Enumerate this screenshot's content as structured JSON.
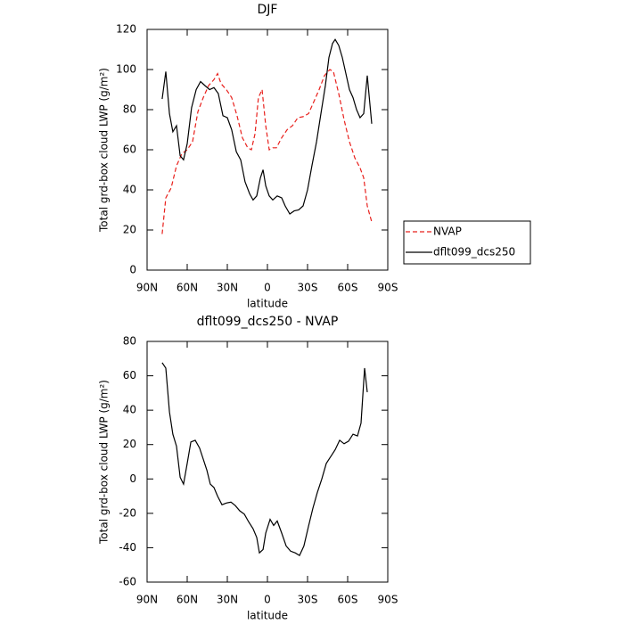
{
  "chart_data": [
    {
      "type": "line",
      "title": "DJF",
      "xlabel": "latitude",
      "ylabel": "Total grd-box cloud LWP (g/m²)",
      "xlim": [
        90,
        -90
      ],
      "xticks": [
        {
          "value": 90,
          "label": "90N"
        },
        {
          "value": 60,
          "label": "60N"
        },
        {
          "value": 30,
          "label": "30N"
        },
        0,
        {
          "value": -30,
          "label": "30S"
        },
        {
          "value": -60,
          "label": "60S"
        },
        {
          "value": -90,
          "label": "90S"
        }
      ],
      "ylim": [
        0,
        120
      ],
      "yticks": [
        0,
        20,
        40,
        60,
        80,
        100,
        120
      ],
      "legend": "right",
      "series": [
        {
          "name": "NVAP",
          "color": "#e8201c",
          "style": "dashed",
          "x": [
            78.7,
            76,
            72,
            68,
            64,
            60,
            56,
            52,
            48,
            44,
            40,
            37.3,
            34.7,
            30.7,
            26.7,
            22.7,
            18.7,
            14.7,
            12,
            9.3,
            6.7,
            4,
            1.3,
            -1.3,
            -4,
            -6.7,
            -10.7,
            -14.7,
            -18.7,
            -22.7,
            -26.7,
            -30.7,
            -34.7,
            -38.7,
            -42.7,
            -46.7,
            -49.3,
            -53.3,
            -57.3,
            -61.3,
            -65.3,
            -69.3,
            -72,
            -74.7,
            -78
          ],
          "values": [
            18,
            36,
            41,
            52,
            58,
            60,
            64,
            79,
            86,
            92,
            95,
            98,
            93,
            90,
            86,
            77,
            66,
            61,
            60,
            68,
            86,
            90,
            72,
            60,
            61,
            61,
            66,
            70,
            72,
            76,
            76.5,
            78,
            84,
            90,
            97,
            100,
            99,
            88,
            75,
            64,
            56,
            51,
            46,
            32,
            24
          ]
        },
        {
          "name": "dflt099_dcs250",
          "color": "#000000",
          "style": "solid",
          "x": [
            78.7,
            76,
            73.3,
            70.7,
            68,
            65.3,
            62.7,
            60,
            56.7,
            53.3,
            50,
            46.7,
            43.3,
            40,
            36.7,
            33.3,
            30,
            26.7,
            23.3,
            20,
            16.7,
            13.3,
            10.7,
            8,
            5.3,
            3.3,
            1.3,
            -1.3,
            -4,
            -7.3,
            -10.7,
            -13.3,
            -16.7,
            -20,
            -23.3,
            -26.7,
            -30,
            -33.3,
            -36.7,
            -40,
            -43.3,
            -46,
            -48.7,
            -50.7,
            -53.3,
            -56,
            -58.7,
            -61.3,
            -64,
            -66.7,
            -69.3,
            -72,
            -74.7,
            -78
          ],
          "values": [
            85.3,
            99,
            78,
            69,
            72,
            57,
            55,
            63,
            81,
            90,
            94,
            92,
            90,
            91,
            88,
            77,
            76,
            70,
            59,
            55,
            44,
            38,
            35,
            37,
            46,
            50,
            42,
            37,
            35,
            37,
            36,
            32,
            28,
            29.5,
            30,
            32,
            40,
            52,
            64,
            78,
            92,
            106,
            113,
            115,
            112,
            106,
            98,
            90,
            86,
            80,
            76,
            78,
            97,
            73
          ]
        }
      ]
    },
    {
      "type": "line",
      "title": "dflt099_dcs250 - NVAP",
      "xlabel": "latitude",
      "ylabel": "Total grd-box cloud LWP (g/m²)",
      "xlim": [
        90,
        -90
      ],
      "xticks": [
        {
          "value": 90,
          "label": "90N"
        },
        {
          "value": 60,
          "label": "60N"
        },
        {
          "value": 30,
          "label": "30N"
        },
        0,
        {
          "value": -30,
          "label": "30S"
        },
        {
          "value": -60,
          "label": "60S"
        },
        {
          "value": -90,
          "label": "90S"
        }
      ],
      "ylim": [
        -60,
        80
      ],
      "yticks": [
        -60,
        -40,
        -20,
        0,
        20,
        40,
        60,
        80
      ],
      "series": [
        {
          "color": "#000000",
          "style": "solid",
          "x": [
            78.7,
            76,
            73.3,
            70.7,
            68,
            65.3,
            62.7,
            60,
            57.3,
            54,
            50.7,
            48,
            45.3,
            42.7,
            40,
            37.3,
            34,
            30.7,
            27.3,
            24,
            20.7,
            17.3,
            14,
            10.7,
            8,
            6,
            3.3,
            1.3,
            -2,
            -4.7,
            -7.3,
            -10.7,
            -14,
            -17.3,
            -20.7,
            -24,
            -27.3,
            -30.7,
            -34,
            -37.3,
            -40.7,
            -44,
            -47.3,
            -50.7,
            -54,
            -57.3,
            -60.7,
            -64,
            -67.3,
            -70,
            -72.7,
            -74.7
          ],
          "values": [
            67.6,
            64.5,
            39,
            26,
            19,
            1,
            -3,
            9,
            21.5,
            22.5,
            18,
            11.5,
            5,
            -3,
            -5,
            -10,
            -15,
            -14,
            -13.5,
            -15.5,
            -18.5,
            -20.5,
            -25,
            -29,
            -34,
            -43,
            -41,
            -31.5,
            -23.5,
            -27,
            -24.5,
            -31.5,
            -39,
            -42,
            -43,
            -44.5,
            -39,
            -27.5,
            -17,
            -8,
            0,
            9,
            13,
            17,
            22.5,
            20.5,
            22,
            26,
            25,
            32.5,
            64.5,
            50.5
          ]
        }
      ]
    }
  ]
}
